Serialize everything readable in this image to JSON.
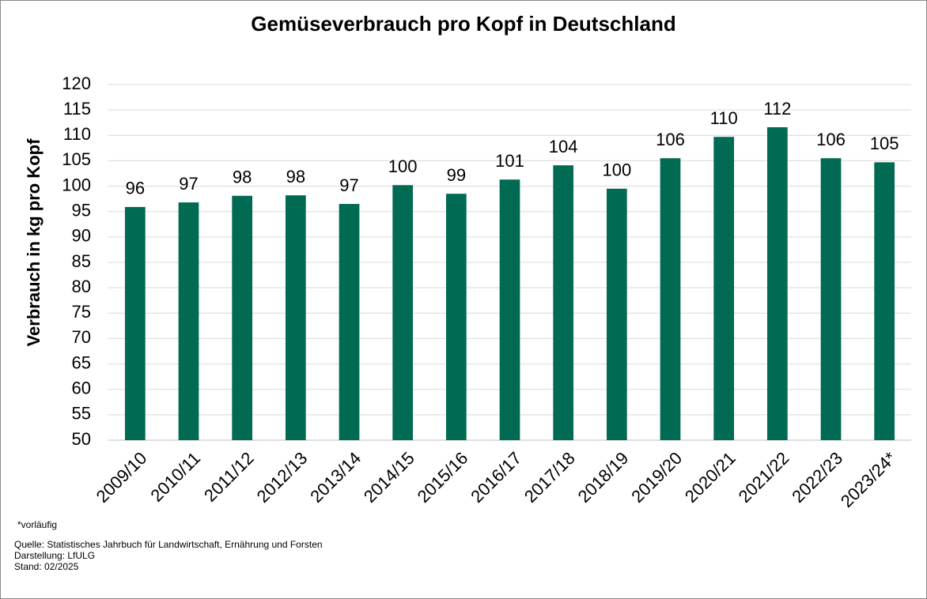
{
  "chart_data": {
    "type": "bar",
    "title": "Gemüseverbrauch pro Kopf in Deutschland",
    "y_label": "Verbrauch in kg pro Kopf",
    "categories": [
      "2009/10",
      "2010/11",
      "2011/12",
      "2012/13",
      "2013/14",
      "2014/15",
      "2015/16",
      "2016/17",
      "2017/18",
      "2018/19",
      "2019/20",
      "2020/21",
      "2021/22",
      "2022/23",
      "2023/24*"
    ],
    "values": [
      95.9,
      96.8,
      98.1,
      98.2,
      96.5,
      100.2,
      98.5,
      101.3,
      104.1,
      99.5,
      105.5,
      109.7,
      111.6,
      105.5,
      104.7
    ],
    "value_labels": [
      "96",
      "97",
      "98",
      "98",
      "97",
      "100",
      "99",
      "101",
      "104",
      "100",
      "106",
      "110",
      "112",
      "106",
      "105"
    ],
    "color": "#006a52",
    "ylim": [
      50,
      120
    ],
    "yticks": [
      50,
      55,
      60,
      65,
      70,
      75,
      80,
      85,
      90,
      95,
      100,
      105,
      110,
      115,
      120
    ],
    "grid": true,
    "notes": [
      "*vorläufig",
      "Quelle: Statistisches Jahrbuch für Landwirtschaft, Ernährung und Forsten",
      "Darstellung: LfULG",
      "Stand: 02/2025"
    ]
  }
}
